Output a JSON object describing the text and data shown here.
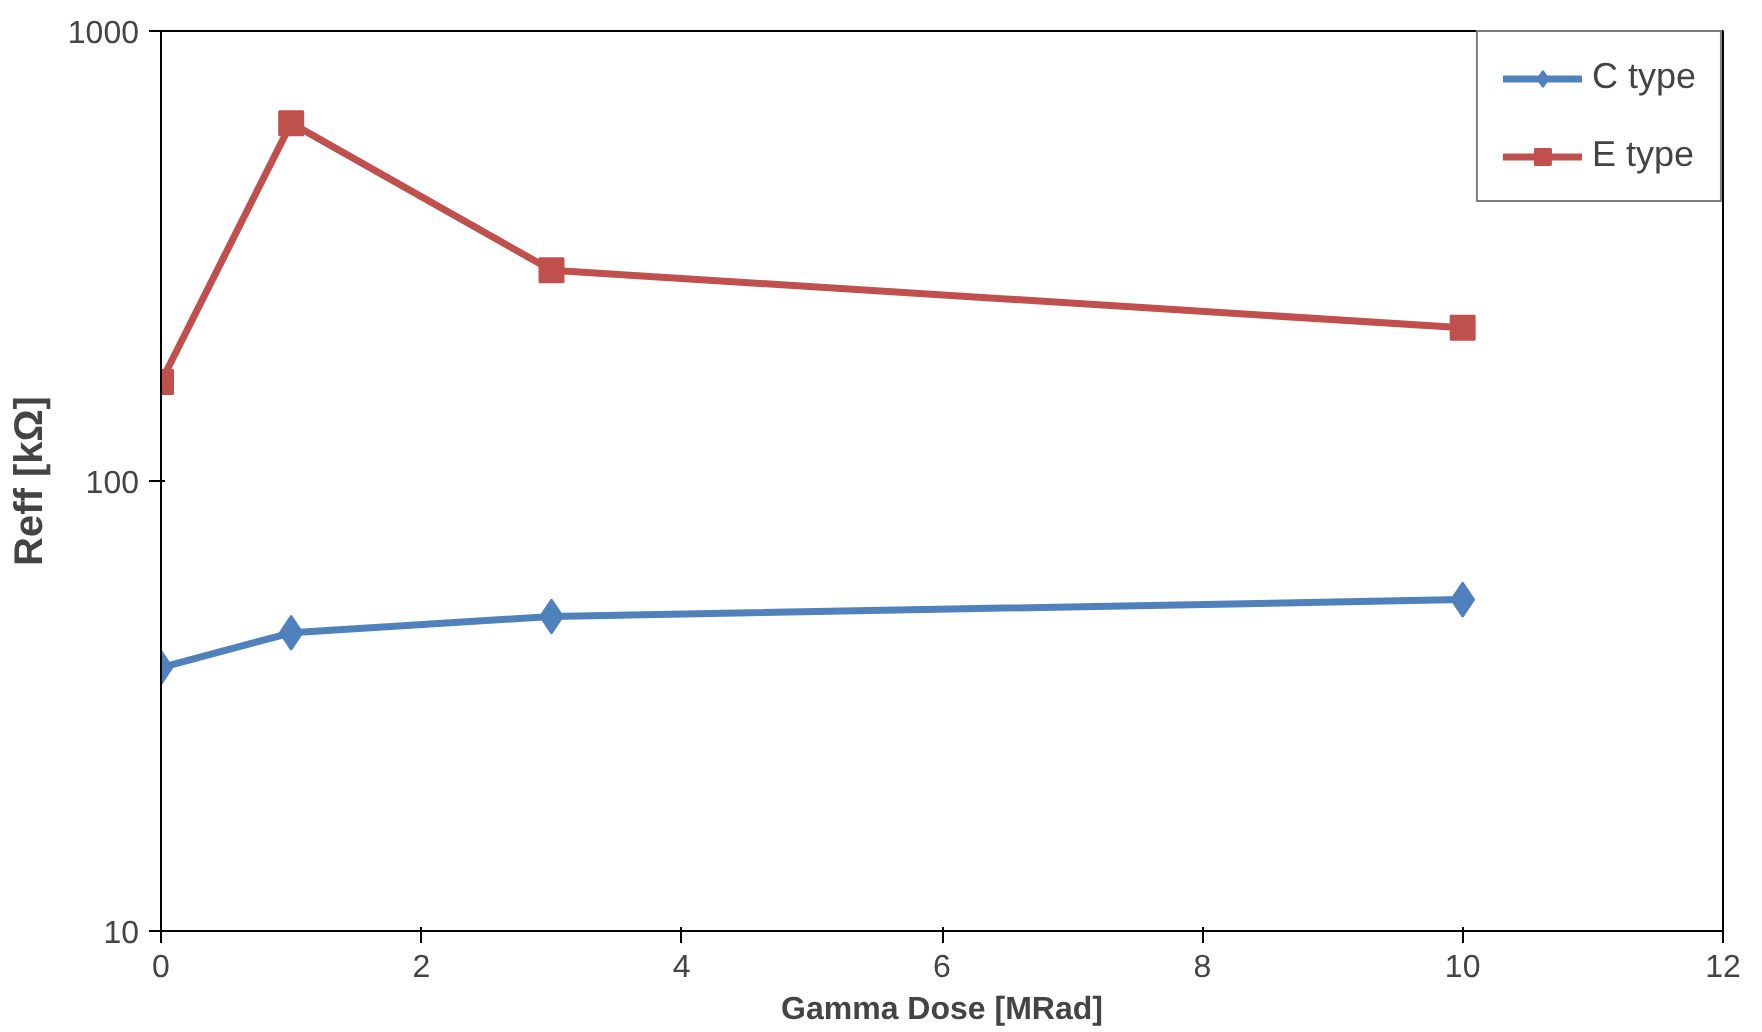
{
  "chart_data": {
    "type": "line",
    "xlabel": "Gamma Dose [MRad]",
    "ylabel": "Reff [kΩ]",
    "log": "y",
    "x": [
      0,
      1,
      3,
      10
    ],
    "series": [
      {
        "name": "C type",
        "color": "#4f81bd",
        "marker": "diamond",
        "values": [
          38.5,
          46,
          50,
          54.5
        ]
      },
      {
        "name": "E type",
        "color": "#c0504d",
        "marker": "square",
        "values": [
          166,
          624,
          294,
          219
        ]
      }
    ],
    "xlim": [
      0,
      12
    ],
    "xticks": [
      0,
      2,
      4,
      6,
      8,
      10,
      12
    ],
    "ylim": [
      10,
      1000
    ],
    "yticks": [
      10,
      100,
      1000
    ],
    "grid": false,
    "legend": "top right",
    "line_style": "solid"
  }
}
